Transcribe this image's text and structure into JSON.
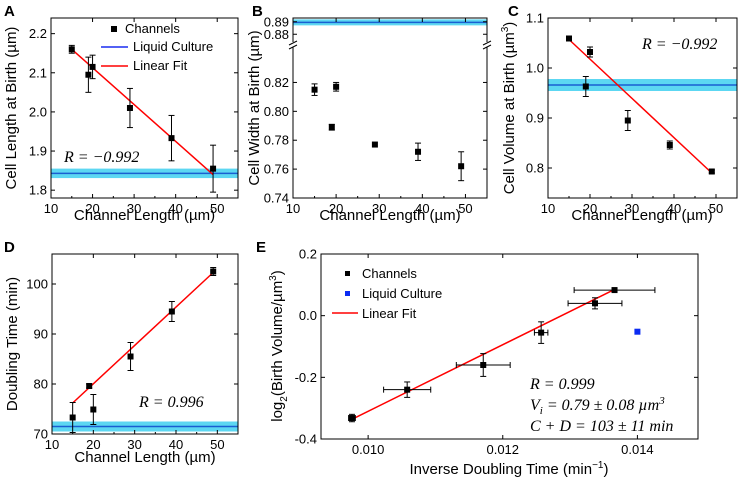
{
  "figure": {
    "colors": {
      "marker": "#000000",
      "fit": "#ff0000",
      "band_fill": "#3fd0f0",
      "band_line": "#1a5fd1",
      "liquid_marker": "#0b2bf2"
    }
  },
  "chart_data": [
    {
      "id": "A",
      "type": "scatter",
      "panel_letter": "A",
      "xlabel": "Channel Length (µm)",
      "ylabel": "Cell Length at Birth (µm)",
      "xlim": [
        10,
        55
      ],
      "ylim": [
        1.78,
        2.24
      ],
      "xticks": [
        10,
        20,
        30,
        40,
        50
      ],
      "yticks": [
        1.8,
        1.9,
        2.0,
        2.1,
        2.2
      ],
      "ytick_decimals": 1,
      "series": [
        {
          "name": "Channels",
          "kind": "points",
          "x": [
            15,
            19,
            20,
            29,
            39,
            49
          ],
          "y": [
            2.16,
            2.095,
            2.115,
            2.01,
            1.933,
            1.855
          ],
          "yerr": [
            0.01,
            0.045,
            0.03,
            0.05,
            0.058,
            0.06
          ]
        },
        {
          "name": "Liquid Culture",
          "kind": "band",
          "y": 1.843,
          "halfwidth": 0.007
        },
        {
          "name": "Linear Fit",
          "kind": "line",
          "x": [
            15,
            49
          ],
          "y": [
            2.16,
            1.84
          ]
        }
      ],
      "annotations": [
        "R = −0.992"
      ],
      "legend": {
        "position": "top-right",
        "entries": [
          {
            "label": "Channels",
            "kind": "marker"
          },
          {
            "label": "Liquid Culture",
            "kind": "blue-line"
          },
          {
            "label": "Linear Fit",
            "kind": "red-line"
          }
        ]
      }
    },
    {
      "id": "B",
      "type": "scatter",
      "panel_letter": "B",
      "xlabel": "Channel Length (µm)",
      "ylabel": "Cell Width at Birth (µm)",
      "xlim": [
        10,
        55
      ],
      "ylim": [
        0.74,
        0.83
      ],
      "ylim_upper": [
        0.877,
        0.893
      ],
      "axis_break": true,
      "xticks": [
        10,
        20,
        30,
        40,
        50
      ],
      "yticks": [
        0.74,
        0.76,
        0.78,
        0.8,
        0.82
      ],
      "yticks_upper": [
        0.88,
        0.89
      ],
      "ytick_decimals": 2,
      "series": [
        {
          "name": "Channels",
          "kind": "points",
          "x": [
            15,
            19,
            20,
            29,
            39,
            49
          ],
          "y": [
            0.815,
            0.789,
            0.817,
            0.777,
            0.772,
            0.762
          ],
          "yerr": [
            0.004,
            0.002,
            0.003,
            0.0,
            0.006,
            0.01
          ]
        },
        {
          "name": "Liquid Culture",
          "kind": "band",
          "y": 0.8895,
          "halfwidth": 0.0008
        }
      ],
      "annotations": []
    },
    {
      "id": "C",
      "type": "scatter",
      "panel_letter": "C",
      "xlabel": "Channel Length (µm)",
      "ylabel": "Cell Volume at Birth (µm³)",
      "ylabel_main": "Cell Volume at Birth (µm",
      "ylabel_sup": "3",
      "ylabel_close": ")",
      "xlim": [
        10,
        55
      ],
      "ylim": [
        0.74,
        1.1
      ],
      "xticks": [
        10,
        20,
        30,
        40,
        50
      ],
      "yticks": [
        0.8,
        0.9,
        1.0,
        1.1
      ],
      "ytick_decimals": 1,
      "series": [
        {
          "name": "Channels",
          "kind": "points",
          "x": [
            15,
            19,
            20,
            29,
            39,
            49
          ],
          "y": [
            1.059,
            0.963,
            1.032,
            0.895,
            0.846,
            0.793
          ],
          "yerr": [
            0.005,
            0.02,
            0.01,
            0.02,
            0.008,
            0.003
          ]
        },
        {
          "name": "Liquid Culture",
          "kind": "band",
          "y": 0.966,
          "halfwidth": 0.008
        },
        {
          "name": "Linear Fit",
          "kind": "line",
          "x": [
            15,
            49
          ],
          "y": [
            1.057,
            0.79
          ]
        }
      ],
      "annotations": [
        "R = −0.992"
      ]
    },
    {
      "id": "D",
      "type": "scatter",
      "panel_letter": "D",
      "xlabel": "Channel Length (µm)",
      "ylabel": "Doubling Time (min)",
      "xlim": [
        10,
        55
      ],
      "ylim": [
        70,
        106
      ],
      "xticks": [
        10,
        20,
        30,
        40,
        50
      ],
      "yticks": [
        70,
        80,
        90,
        100
      ],
      "ytick_decimals": 0,
      "series": [
        {
          "name": "Channels",
          "kind": "points",
          "x": [
            15,
            19,
            20,
            29,
            39,
            49
          ],
          "y": [
            73.3,
            79.6,
            74.9,
            85.5,
            94.5,
            102.5
          ],
          "yerr": [
            3.0,
            0.4,
            3.0,
            2.8,
            2.0,
            0.8
          ]
        },
        {
          "name": "Liquid Culture",
          "kind": "band",
          "y": 71.5,
          "halfwidth": 0.6
        },
        {
          "name": "Linear Fit",
          "kind": "line",
          "x": [
            15,
            49
          ],
          "y": [
            76.2,
            102.3
          ]
        }
      ],
      "annotations": [
        "R = 0.996"
      ]
    },
    {
      "id": "E",
      "type": "scatter",
      "panel_letter": "E",
      "xlabel_main": "Inverse Doubling Time (min",
      "xlabel_sup": "−1",
      "xlabel_close": ")",
      "ylabel_a": "log",
      "ylabel_sub": "2",
      "ylabel_b": "(Birth Volume/µm",
      "ylabel_sup": "3",
      "ylabel_close": ")",
      "xlim": [
        0.0093,
        0.0149
      ],
      "ylim": [
        -0.4,
        0.2
      ],
      "xticks": [
        0.01,
        0.012,
        0.014
      ],
      "xtick_decimals": 3,
      "yticks": [
        -0.4,
        -0.2,
        0.0,
        0.2
      ],
      "ytick_decimals": 1,
      "series": [
        {
          "name": "Channels",
          "kind": "points",
          "x": [
            0.00976,
            0.01058,
            0.01171,
            0.01257,
            0.01337,
            0.01366
          ],
          "y": [
            -0.332,
            -0.24,
            -0.16,
            -0.055,
            0.04,
            0.083
          ],
          "xerr": [
            5e-05,
            0.00035,
            0.0004,
            0.0001,
            0.0004,
            0.0006
          ],
          "yerr": [
            0.012,
            0.025,
            0.037,
            0.035,
            0.018,
            0.005
          ]
        },
        {
          "name": "Liquid Culture",
          "kind": "points-blue",
          "x": [
            0.014
          ],
          "y": [
            -0.052
          ],
          "yerr": [
            0.0
          ]
        },
        {
          "name": "Linear Fit",
          "kind": "line",
          "x": [
            0.00976,
            0.01366
          ],
          "y": [
            -0.336,
            0.085
          ]
        }
      ],
      "annotations": [
        "R = 0.999",
        "Vi = 0.79 ± 0.08 µm³",
        "C + D = 103 ± 11 min"
      ],
      "ann_R": "R = 0.999",
      "ann_V_lead": "V",
      "ann_V_sub": "i",
      "ann_V_rest": " = 0.79 ± 0.08 µm",
      "ann_V_sup": "3",
      "ann_CD": "C + D = 103 ± 11 min",
      "legend": {
        "position": "top-left",
        "entries": [
          {
            "label": "Channels",
            "kind": "marker"
          },
          {
            "label": "Liquid Culture",
            "kind": "marker-blue"
          },
          {
            "label": "Linear Fit",
            "kind": "red-line"
          }
        ]
      }
    }
  ]
}
